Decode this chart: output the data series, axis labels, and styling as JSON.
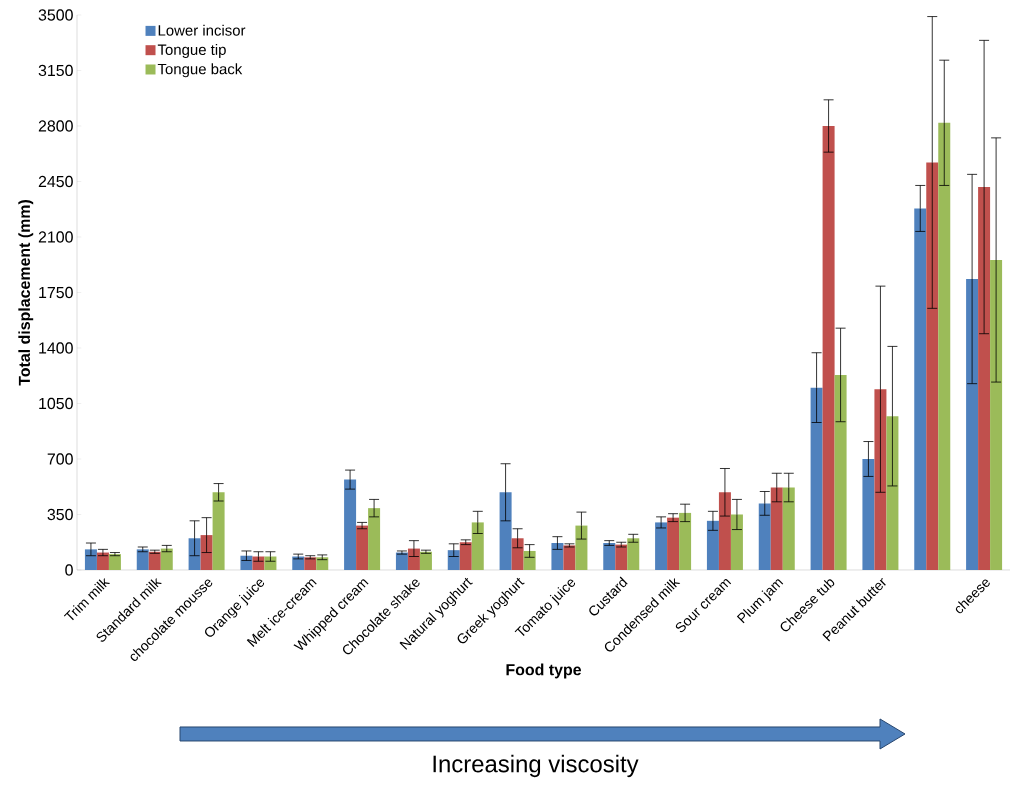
{
  "chart_data": {
    "type": "bar",
    "xlabel": "Food type",
    "ylabel": "Total displacement (mm)",
    "categories": [
      "Trim milk",
      "Standard milk",
      "chocolate mousse",
      "Orange juice",
      "Melt ice-cream",
      "Whipped cream",
      "Chocolate shake",
      "Natural yoghurt",
      "Greek yoghurt",
      "Tomato juice",
      "Custard",
      "Condensed milk",
      "Sour cream",
      "Plum jam",
      "Cheese tub",
      "Peanut butter",
      null,
      "cheese"
    ],
    "series": [
      {
        "name": "Lower incisor",
        "color": "#4f81bd",
        "values": [
          130,
          130,
          200,
          90,
          85,
          570,
          110,
          125,
          490,
          170,
          170,
          300,
          310,
          420,
          1150,
          700,
          2280,
          1835
        ],
        "errors": [
          40,
          15,
          110,
          30,
          15,
          60,
          10,
          40,
          180,
          40,
          15,
          35,
          60,
          75,
          220,
          110,
          145,
          660
        ]
      },
      {
        "name": "Tongue tip",
        "color": "#c0504d",
        "values": [
          110,
          115,
          220,
          85,
          80,
          280,
          135,
          175,
          200,
          155,
          160,
          330,
          490,
          520,
          2800,
          1140,
          2570,
          2415
        ],
        "errors": [
          20,
          10,
          110,
          30,
          10,
          20,
          50,
          15,
          60,
          10,
          15,
          25,
          150,
          90,
          165,
          650,
          920,
          925
        ]
      },
      {
        "name": "Tongue back",
        "color": "#9bbb59",
        "values": [
          100,
          135,
          490,
          85,
          80,
          390,
          115,
          300,
          120,
          280,
          200,
          360,
          350,
          520,
          1230,
          970,
          2820,
          1955
        ],
        "errors": [
          10,
          20,
          55,
          30,
          15,
          55,
          10,
          70,
          40,
          85,
          25,
          55,
          95,
          90,
          295,
          440,
          395,
          770
        ]
      }
    ],
    "ylim": [
      0,
      3500
    ],
    "yticks": [
      0,
      350,
      700,
      1050,
      1400,
      1750,
      2100,
      2450,
      2800,
      3150,
      3500
    ],
    "legend": "top left",
    "grid": false,
    "annotations": [
      "Increasing viscosity"
    ]
  }
}
